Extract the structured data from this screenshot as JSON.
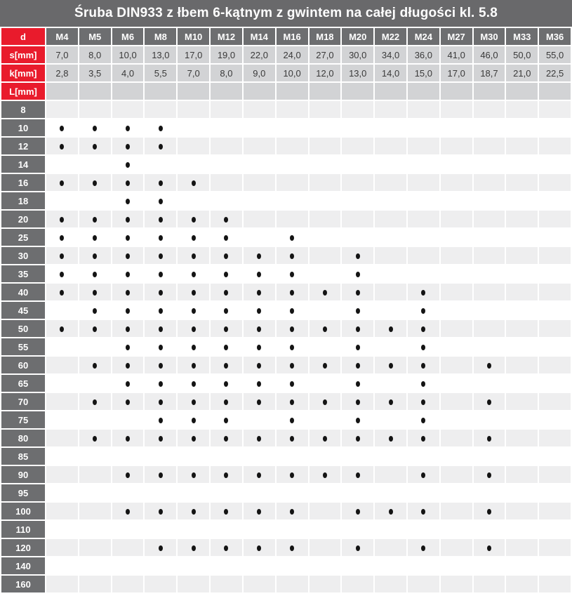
{
  "title": "Śruba DIN933 z łbem 6-kątnym z gwintem na całej długości kl. 5.8",
  "colors": {
    "accent_red": "#e91b2c",
    "title_bar_gray": "#69696b",
    "header_cell_gray": "#6d6e70",
    "spec_cell_gray": "#d2d3d5",
    "stripe_row_gray": "#eeeeef",
    "plain_row_white": "#ffffff",
    "dot_black": "#141414",
    "text_dark": "#3a3a3a",
    "text_white": "#ffffff"
  },
  "icons": {
    "dot_icon": "•"
  },
  "table": {
    "corner_label": "d",
    "diameters": [
      "M4",
      "M5",
      "M6",
      "M8",
      "M10",
      "M12",
      "M14",
      "M16",
      "M18",
      "M20",
      "M22",
      "M24",
      "M27",
      "M30",
      "M33",
      "M36"
    ],
    "s_row": {
      "label": "s[mm]",
      "values": [
        "7,0",
        "8,0",
        "10,0",
        "13,0",
        "17,0",
        "19,0",
        "22,0",
        "24,0",
        "27,0",
        "30,0",
        "34,0",
        "36,0",
        "41,0",
        "46,0",
        "50,0",
        "55,0"
      ]
    },
    "k_row": {
      "label": "k[mm]",
      "values": [
        "2,8",
        "3,5",
        "4,0",
        "5,5",
        "7,0",
        "8,0",
        "9,0",
        "10,0",
        "12,0",
        "13,0",
        "14,0",
        "15,0",
        "17,0",
        "18,7",
        "21,0",
        "22,5"
      ]
    },
    "l_row": {
      "label": "L[mm]"
    },
    "lengths": [
      {
        "label": "8",
        "available": []
      },
      {
        "label": "10",
        "available": [
          "M4",
          "M5",
          "M6",
          "M8"
        ]
      },
      {
        "label": "12",
        "available": [
          "M4",
          "M5",
          "M6",
          "M8"
        ]
      },
      {
        "label": "14",
        "available": [
          "M6"
        ]
      },
      {
        "label": "16",
        "available": [
          "M4",
          "M5",
          "M6",
          "M8",
          "M10"
        ]
      },
      {
        "label": "18",
        "available": [
          "M6",
          "M8"
        ]
      },
      {
        "label": "20",
        "available": [
          "M4",
          "M5",
          "M6",
          "M8",
          "M10",
          "M12"
        ]
      },
      {
        "label": "25",
        "available": [
          "M4",
          "M5",
          "M6",
          "M8",
          "M10",
          "M12",
          "M16"
        ]
      },
      {
        "label": "30",
        "available": [
          "M4",
          "M5",
          "M6",
          "M8",
          "M10",
          "M12",
          "M14",
          "M16",
          "M20"
        ]
      },
      {
        "label": "35",
        "available": [
          "M4",
          "M5",
          "M6",
          "M8",
          "M10",
          "M12",
          "M14",
          "M16",
          "M20"
        ]
      },
      {
        "label": "40",
        "available": [
          "M4",
          "M5",
          "M6",
          "M8",
          "M10",
          "M12",
          "M14",
          "M16",
          "M18",
          "M20",
          "M24"
        ]
      },
      {
        "label": "45",
        "available": [
          "M5",
          "M6",
          "M8",
          "M10",
          "M12",
          "M14",
          "M16",
          "M20",
          "M24"
        ]
      },
      {
        "label": "50",
        "available": [
          "M4",
          "M5",
          "M6",
          "M8",
          "M10",
          "M12",
          "M14",
          "M16",
          "M18",
          "M20",
          "M22",
          "M24"
        ]
      },
      {
        "label": "55",
        "available": [
          "M6",
          "M8",
          "M10",
          "M12",
          "M14",
          "M16",
          "M20",
          "M24"
        ]
      },
      {
        "label": "60",
        "available": [
          "M5",
          "M6",
          "M8",
          "M10",
          "M12",
          "M14",
          "M16",
          "M18",
          "M20",
          "M22",
          "M24",
          "M30"
        ]
      },
      {
        "label": "65",
        "available": [
          "M6",
          "M8",
          "M10",
          "M12",
          "M14",
          "M16",
          "M20",
          "M24"
        ]
      },
      {
        "label": "70",
        "available": [
          "M5",
          "M6",
          "M8",
          "M10",
          "M12",
          "M14",
          "M16",
          "M18",
          "M20",
          "M22",
          "M24",
          "M30"
        ]
      },
      {
        "label": "75",
        "available": [
          "M8",
          "M10",
          "M12",
          "M16",
          "M20",
          "M24"
        ]
      },
      {
        "label": "80",
        "available": [
          "M5",
          "M6",
          "M8",
          "M10",
          "M12",
          "M14",
          "M16",
          "M18",
          "M20",
          "M22",
          "M24",
          "M30"
        ]
      },
      {
        "label": "85",
        "available": []
      },
      {
        "label": "90",
        "available": [
          "M6",
          "M8",
          "M10",
          "M12",
          "M14",
          "M16",
          "M18",
          "M20",
          "M24",
          "M30"
        ]
      },
      {
        "label": "95",
        "available": []
      },
      {
        "label": "100",
        "available": [
          "M6",
          "M8",
          "M10",
          "M12",
          "M14",
          "M16",
          "M20",
          "M22",
          "M24",
          "M30"
        ]
      },
      {
        "label": "110",
        "available": []
      },
      {
        "label": "120",
        "available": [
          "M8",
          "M10",
          "M12",
          "M14",
          "M16",
          "M20",
          "M24",
          "M30"
        ]
      },
      {
        "label": "140",
        "available": []
      },
      {
        "label": "160",
        "available": []
      }
    ]
  }
}
